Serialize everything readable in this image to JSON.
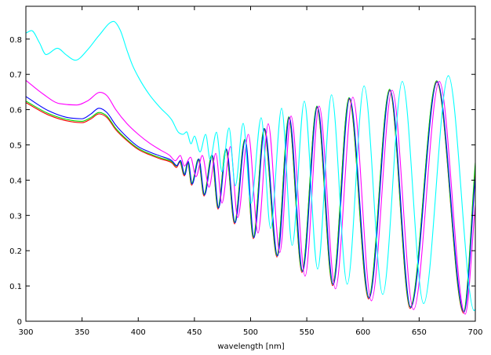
{
  "chart_data": {
    "type": "line",
    "title": "",
    "xlabel": "wavelength [nm]",
    "ylabel": "",
    "xlim": [
      300,
      700
    ],
    "ylim": [
      0,
      0.893
    ],
    "xticks": [
      "300",
      "350",
      "400",
      "450",
      "500",
      "550",
      "600",
      "650",
      "700"
    ],
    "yticks": [
      "0",
      "0.1",
      "0.2",
      "0.3",
      "0.4",
      "0.5",
      "0.6",
      "0.7",
      "0.8"
    ],
    "grid": false,
    "legend": "none",
    "series": [
      {
        "color": "#ff0000",
        "points": [
          [
            300,
            0.62
          ],
          [
            320,
            0.585
          ],
          [
            340,
            0.566
          ],
          [
            350,
            0.563
          ],
          [
            358,
            0.574
          ],
          [
            365,
            0.588
          ],
          [
            372,
            0.578
          ],
          [
            380,
            0.543
          ],
          [
            390,
            0.512
          ],
          [
            400,
            0.487
          ],
          [
            410,
            0.472
          ],
          [
            420,
            0.46
          ],
          [
            430,
            0.449
          ],
          [
            434,
            0.436
          ],
          [
            437,
            0.451
          ],
          [
            441,
            0.412
          ],
          [
            444,
            0.449
          ],
          [
            447.5,
            0.386
          ],
          [
            453.5,
            0.457
          ],
          [
            458.5,
            0.355
          ],
          [
            465.4,
            0.468
          ],
          [
            471,
            0.318
          ],
          [
            478,
            0.486
          ],
          [
            485.7,
            0.276
          ],
          [
            494.8,
            0.513
          ],
          [
            502.4,
            0.234
          ],
          [
            512,
            0.544
          ],
          [
            523.4,
            0.182
          ],
          [
            534,
            0.577
          ],
          [
            545.7,
            0.138
          ],
          [
            559,
            0.607
          ],
          [
            573,
            0.101
          ],
          [
            587.6,
            0.631
          ],
          [
            605,
            0.063
          ],
          [
            623.7,
            0.655
          ],
          [
            642,
            0.036
          ],
          [
            665.6,
            0.679
          ],
          [
            689.5,
            0.023
          ],
          [
            700,
            0.44
          ]
        ]
      },
      {
        "color": "#00dd00",
        "points": [
          [
            300,
            0.624
          ],
          [
            320,
            0.589
          ],
          [
            340,
            0.57
          ],
          [
            350,
            0.567
          ],
          [
            358,
            0.578
          ],
          [
            365,
            0.592
          ],
          [
            372,
            0.582
          ],
          [
            380,
            0.547
          ],
          [
            390,
            0.515
          ],
          [
            400,
            0.49
          ],
          [
            410,
            0.475
          ],
          [
            420,
            0.463
          ],
          [
            430,
            0.452
          ],
          [
            434,
            0.44
          ],
          [
            437,
            0.454
          ],
          [
            441,
            0.416
          ],
          [
            444,
            0.452
          ],
          [
            447.5,
            0.39
          ],
          [
            453.5,
            0.46
          ],
          [
            458.5,
            0.359
          ],
          [
            465.4,
            0.471
          ],
          [
            471,
            0.322
          ],
          [
            478,
            0.489
          ],
          [
            485.7,
            0.28
          ],
          [
            494.8,
            0.516
          ],
          [
            502.4,
            0.238
          ],
          [
            512,
            0.547
          ],
          [
            523.4,
            0.186
          ],
          [
            534,
            0.58
          ],
          [
            545.7,
            0.142
          ],
          [
            559,
            0.61
          ],
          [
            573,
            0.105
          ],
          [
            587.6,
            0.634
          ],
          [
            605,
            0.067
          ],
          [
            623.7,
            0.658
          ],
          [
            642,
            0.04
          ],
          [
            665.6,
            0.682
          ],
          [
            689.5,
            0.027
          ],
          [
            700,
            0.45
          ]
        ]
      },
      {
        "color": "#0000ff",
        "points": [
          [
            300,
            0.637
          ],
          [
            320,
            0.597
          ],
          [
            340,
            0.576
          ],
          [
            350,
            0.574
          ],
          [
            358,
            0.588
          ],
          [
            365,
            0.604
          ],
          [
            372,
            0.592
          ],
          [
            380,
            0.556
          ],
          [
            390,
            0.522
          ],
          [
            400,
            0.495
          ],
          [
            410,
            0.48
          ],
          [
            420,
            0.468
          ],
          [
            430,
            0.455
          ],
          [
            434.5,
            0.441
          ],
          [
            437.5,
            0.456
          ],
          [
            441.5,
            0.415
          ],
          [
            444.5,
            0.453
          ],
          [
            448,
            0.389
          ],
          [
            454,
            0.46
          ],
          [
            459,
            0.358
          ],
          [
            466,
            0.47
          ],
          [
            471.5,
            0.321
          ],
          [
            478.5,
            0.488
          ],
          [
            486.2,
            0.279
          ],
          [
            495.3,
            0.515
          ],
          [
            503,
            0.237
          ],
          [
            512.5,
            0.546
          ],
          [
            524,
            0.185
          ],
          [
            534.5,
            0.578
          ],
          [
            546.3,
            0.141
          ],
          [
            559.5,
            0.608
          ],
          [
            573.6,
            0.104
          ],
          [
            588.2,
            0.632
          ],
          [
            605.6,
            0.066
          ],
          [
            624.2,
            0.655
          ],
          [
            642.6,
            0.039
          ],
          [
            666.1,
            0.679
          ],
          [
            690,
            0.026
          ],
          [
            700,
            0.41
          ]
        ]
      },
      {
        "color": "#ff00ff",
        "points": [
          [
            300,
            0.683
          ],
          [
            315,
            0.645
          ],
          [
            330,
            0.617
          ],
          [
            345,
            0.613
          ],
          [
            355,
            0.625
          ],
          [
            366,
            0.649
          ],
          [
            372,
            0.64
          ],
          [
            380,
            0.6
          ],
          [
            390,
            0.56
          ],
          [
            400,
            0.53
          ],
          [
            410,
            0.505
          ],
          [
            420,
            0.485
          ],
          [
            428,
            0.47
          ],
          [
            433,
            0.455
          ],
          [
            437.5,
            0.47
          ],
          [
            441,
            0.44
          ],
          [
            446.5,
            0.465
          ],
          [
            451.5,
            0.41
          ],
          [
            457,
            0.47
          ],
          [
            463,
            0.38
          ],
          [
            469,
            0.476
          ],
          [
            474.5,
            0.335
          ],
          [
            482,
            0.495
          ],
          [
            488.5,
            0.294
          ],
          [
            498,
            0.53
          ],
          [
            506.6,
            0.25
          ],
          [
            515.7,
            0.56
          ],
          [
            526,
            0.195
          ],
          [
            536,
            0.582
          ],
          [
            548.5,
            0.128
          ],
          [
            561,
            0.61
          ],
          [
            575.5,
            0.092
          ],
          [
            591,
            0.635
          ],
          [
            607.5,
            0.058
          ],
          [
            626,
            0.655
          ],
          [
            645,
            0.033
          ],
          [
            668,
            0.68
          ],
          [
            691,
            0.02
          ],
          [
            700,
            0.33
          ]
        ]
      },
      {
        "color": "#00ffff",
        "points": [
          [
            300,
            0.817
          ],
          [
            305,
            0.824
          ],
          [
            312,
            0.79
          ],
          [
            318,
            0.756
          ],
          [
            328,
            0.774
          ],
          [
            336,
            0.755
          ],
          [
            344,
            0.74
          ],
          [
            355,
            0.77
          ],
          [
            365,
            0.81
          ],
          [
            378,
            0.85
          ],
          [
            384,
            0.825
          ],
          [
            390,
            0.768
          ],
          [
            395,
            0.725
          ],
          [
            400,
            0.693
          ],
          [
            410,
            0.642
          ],
          [
            420,
            0.604
          ],
          [
            430,
            0.57
          ],
          [
            436,
            0.535
          ],
          [
            440,
            0.53
          ],
          [
            443,
            0.537
          ],
          [
            447,
            0.503
          ],
          [
            450,
            0.525
          ],
          [
            455,
            0.48
          ],
          [
            460,
            0.53
          ],
          [
            464,
            0.458
          ],
          [
            469.6,
            0.536
          ],
          [
            474.5,
            0.424
          ],
          [
            480.8,
            0.548
          ],
          [
            486.4,
            0.384
          ],
          [
            493.4,
            0.561
          ],
          [
            500.3,
            0.334
          ],
          [
            509.4,
            0.577
          ],
          [
            517.8,
            0.263
          ],
          [
            527.6,
            0.604
          ],
          [
            537,
            0.215
          ],
          [
            547.8,
            0.624
          ],
          [
            559.7,
            0.148
          ],
          [
            572,
            0.642
          ],
          [
            586,
            0.105
          ],
          [
            601,
            0.667
          ],
          [
            617.6,
            0.076
          ],
          [
            635,
            0.68
          ],
          [
            654,
            0.05
          ],
          [
            676,
            0.696
          ],
          [
            699,
            0.03
          ],
          [
            700,
            0.035
          ]
        ]
      }
    ]
  }
}
